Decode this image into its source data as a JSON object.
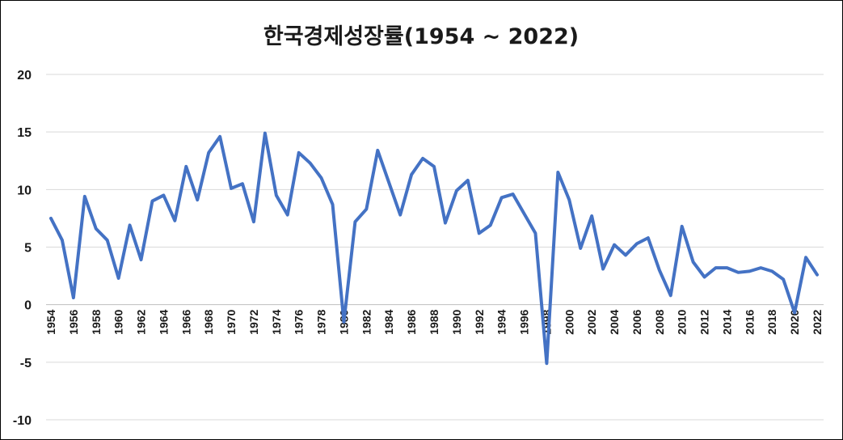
{
  "chart_data": {
    "type": "line",
    "title": "한국경제성장률(1954 ~ 2022)",
    "xlabel": "",
    "ylabel": "",
    "ylim": [
      -10,
      20
    ],
    "yticks": [
      20,
      15,
      10,
      5,
      0,
      -5,
      -10
    ],
    "grid": true,
    "legend": "none",
    "color": "#4472c4",
    "x": [
      1954,
      1955,
      1956,
      1957,
      1958,
      1959,
      1960,
      1961,
      1962,
      1963,
      1964,
      1965,
      1966,
      1967,
      1968,
      1969,
      1970,
      1971,
      1972,
      1973,
      1974,
      1975,
      1976,
      1977,
      1978,
      1979,
      1980,
      1981,
      1982,
      1983,
      1984,
      1985,
      1986,
      1987,
      1988,
      1989,
      1990,
      1991,
      1992,
      1993,
      1994,
      1995,
      1996,
      1997,
      1998,
      1999,
      2000,
      2001,
      2002,
      2003,
      2004,
      2005,
      2006,
      2007,
      2008,
      2009,
      2010,
      2011,
      2012,
      2013,
      2014,
      2015,
      2016,
      2017,
      2018,
      2019,
      2020,
      2021,
      2022
    ],
    "xtick_labels": [
      "1954",
      "1956",
      "1958",
      "1960",
      "1962",
      "1964",
      "1966",
      "1968",
      "1970",
      "1972",
      "1974",
      "1976",
      "1978",
      "1980",
      "1982",
      "1984",
      "1986",
      "1988",
      "1990",
      "1992",
      "1994",
      "1996",
      "1998",
      "2000",
      "2002",
      "2004",
      "2006",
      "2008",
      "2010",
      "2012",
      "2014",
      "2016",
      "2018",
      "2020",
      "2022"
    ],
    "series": [
      {
        "values": [
          7.5,
          5.6,
          0.6,
          9.4,
          6.6,
          5.6,
          2.3,
          6.9,
          3.9,
          9.0,
          9.5,
          7.3,
          12.0,
          9.1,
          13.2,
          14.6,
          10.1,
          10.5,
          7.2,
          14.9,
          9.5,
          7.8,
          13.2,
          12.3,
          11.0,
          8.7,
          -1.5,
          7.2,
          8.3,
          13.4,
          10.6,
          7.8,
          11.3,
          12.7,
          12.0,
          7.1,
          9.9,
          10.8,
          6.2,
          6.9,
          9.3,
          9.6,
          7.9,
          6.2,
          -5.1,
          11.5,
          9.1,
          4.9,
          7.7,
          3.1,
          5.2,
          4.3,
          5.3,
          5.8,
          3.0,
          0.8,
          6.8,
          3.7,
          2.4,
          3.2,
          3.2,
          2.8,
          2.9,
          3.2,
          2.9,
          2.2,
          -0.7,
          4.1,
          2.6
        ]
      }
    ]
  }
}
